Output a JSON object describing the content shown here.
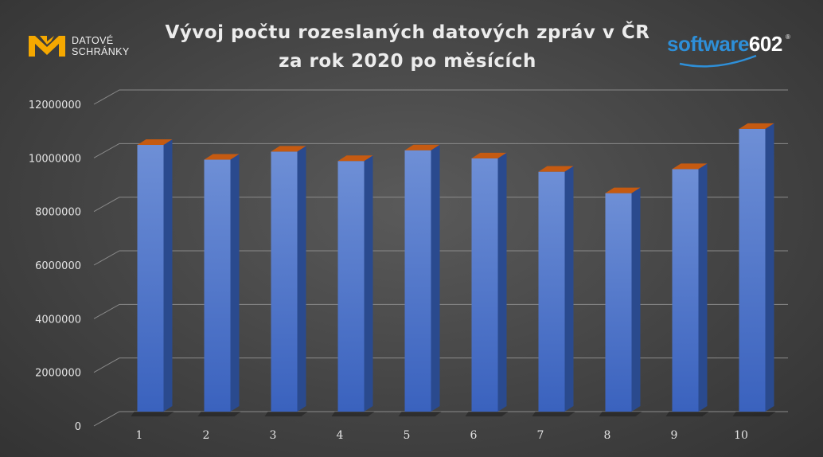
{
  "brand_left": {
    "line1": "DATOVÉ",
    "line2": "SCHRÁNKY",
    "icon": "datove-schranky-mark",
    "color": "#f5a800"
  },
  "brand_right": {
    "part1": "software",
    "part2": "602",
    "reg": "®",
    "color": "#2e8fd8"
  },
  "chart_data": {
    "type": "bar",
    "title_lines": [
      "Vývoj počtu rozeslaných datových zpráv v ČR",
      "za rok 2020 po měsících"
    ],
    "categories": [
      "1",
      "2",
      "3",
      "4",
      "5",
      "6",
      "7",
      "8",
      "9",
      "10"
    ],
    "values": [
      9950000,
      9400000,
      9700000,
      9350000,
      9750000,
      9450000,
      8950000,
      8150000,
      9050000,
      10550000
    ],
    "ylim": [
      0,
      12000000
    ],
    "yticks": [
      "0",
      "2000000",
      "4000000",
      "6000000",
      "8000000",
      "10000000",
      "12000000"
    ],
    "grid": true,
    "legend": "none",
    "bar_color": "#4472c4",
    "bar_top_color": "#c55a11"
  }
}
